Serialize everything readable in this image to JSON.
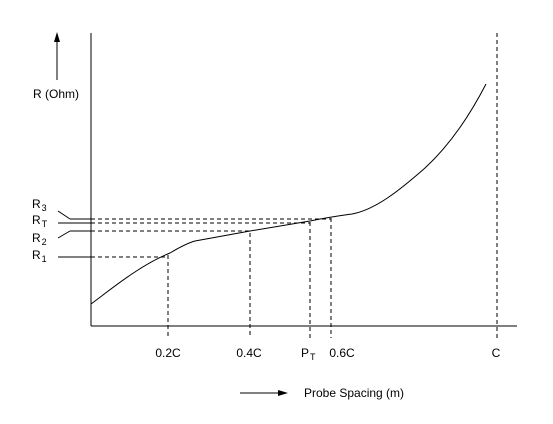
{
  "diagram": {
    "y_axis_label": "R (Ohm)",
    "x_axis_label": "Probe Spacing (m)",
    "left_labels": [
      {
        "main": "R",
        "sub": "3"
      },
      {
        "main": "R",
        "sub": "T"
      },
      {
        "main": "R",
        "sub": "2"
      },
      {
        "main": "R",
        "sub": "1"
      }
    ],
    "tick_labels": {
      "t02": "0.2C",
      "t04": "0.4C",
      "pt_main": "P",
      "pt_sub": "T",
      "t06": "0.6C",
      "c": "C"
    },
    "colors": {
      "line": "#000000",
      "background": "#ffffff"
    }
  }
}
